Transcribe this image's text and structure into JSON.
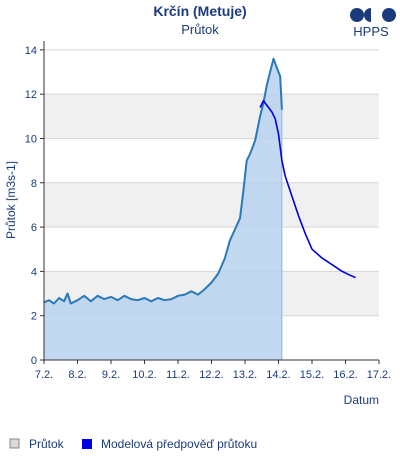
{
  "chart_data": {
    "type": "line",
    "title": "Krčín (Metuje)",
    "subtitle": "Průtok",
    "xlabel": "Datum",
    "ylabel": "Průtok [m3s-1]",
    "xlim": [
      7.2,
      17.2
    ],
    "ylim": [
      0,
      14.4
    ],
    "x_tick_labels": [
      "7.2.",
      "8.2.",
      "9.2.",
      "10.2.",
      "11.2.",
      "12.2.",
      "13.2.",
      "14.2.",
      "15.2.",
      "16.2.",
      "17.2."
    ],
    "y_ticks": [
      0,
      2,
      4,
      6,
      8,
      10,
      12,
      14
    ],
    "grid": true,
    "legend_position": "bottom",
    "series": [
      {
        "name": "Průtok",
        "color": "#2a7ab8",
        "fill": "#b8d2ee",
        "points": [
          [
            7.2,
            2.6
          ],
          [
            7.35,
            2.7
          ],
          [
            7.5,
            2.55
          ],
          [
            7.65,
            2.8
          ],
          [
            7.8,
            2.65
          ],
          [
            7.9,
            3.0
          ],
          [
            8.0,
            2.55
          ],
          [
            8.2,
            2.7
          ],
          [
            8.4,
            2.9
          ],
          [
            8.6,
            2.65
          ],
          [
            8.8,
            2.9
          ],
          [
            9.0,
            2.75
          ],
          [
            9.2,
            2.85
          ],
          [
            9.4,
            2.7
          ],
          [
            9.6,
            2.9
          ],
          [
            9.8,
            2.75
          ],
          [
            10.0,
            2.7
          ],
          [
            10.2,
            2.8
          ],
          [
            10.4,
            2.65
          ],
          [
            10.6,
            2.8
          ],
          [
            10.8,
            2.7
          ],
          [
            11.0,
            2.75
          ],
          [
            11.2,
            2.9
          ],
          [
            11.4,
            2.95
          ],
          [
            11.6,
            3.1
          ],
          [
            11.8,
            2.95
          ],
          [
            12.0,
            3.2
          ],
          [
            12.2,
            3.5
          ],
          [
            12.4,
            3.9
          ],
          [
            12.6,
            4.6
          ],
          [
            12.75,
            5.4
          ],
          [
            12.9,
            5.9
          ],
          [
            13.05,
            6.4
          ],
          [
            13.15,
            7.6
          ],
          [
            13.25,
            9.0
          ],
          [
            13.35,
            9.3
          ],
          [
            13.5,
            9.9
          ],
          [
            13.65,
            11.0
          ],
          [
            13.75,
            11.6
          ],
          [
            13.85,
            12.4
          ],
          [
            13.95,
            13.0
          ],
          [
            14.05,
            13.6
          ],
          [
            14.15,
            13.2
          ],
          [
            14.25,
            12.8
          ],
          [
            14.3,
            11.3
          ]
        ]
      },
      {
        "name": "Modelová předpověď průtoku",
        "color": "#0000e0",
        "points": [
          [
            13.65,
            11.4
          ],
          [
            13.75,
            11.7
          ],
          [
            13.85,
            11.5
          ],
          [
            14.0,
            11.2
          ],
          [
            14.1,
            10.9
          ],
          [
            14.2,
            10.2
          ],
          [
            14.3,
            9.0
          ],
          [
            14.4,
            8.3
          ],
          [
            14.6,
            7.4
          ],
          [
            14.8,
            6.5
          ],
          [
            15.0,
            5.7
          ],
          [
            15.2,
            5.0
          ],
          [
            15.5,
            4.6
          ],
          [
            15.8,
            4.3
          ],
          [
            16.1,
            4.0
          ],
          [
            16.3,
            3.85
          ],
          [
            16.5,
            3.72
          ]
        ]
      }
    ]
  },
  "brand": {
    "logo_text": "HPPS",
    "color": "#1b3b7c"
  },
  "legend": [
    {
      "label": "Průtok",
      "swatch": "#d9d9d9"
    },
    {
      "label": "Modelová předpověď průtoku",
      "swatch": "#0000e0"
    }
  ]
}
